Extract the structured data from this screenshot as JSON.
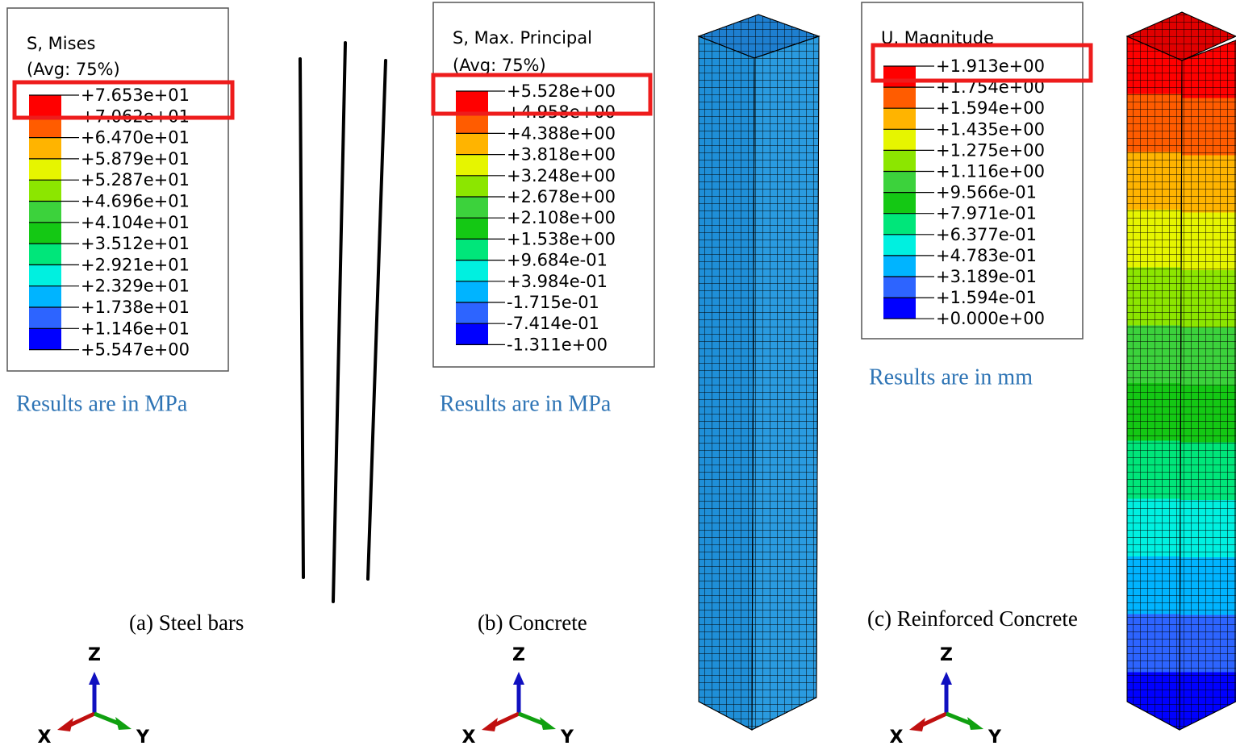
{
  "panels": [
    {
      "legend": {
        "title": "S, Mises",
        "average": "(Avg: 75%)",
        "labels": [
          "+7.653e+01",
          "+7.062e+01",
          "+6.470e+01",
          "+5.879e+01",
          "+5.287e+01",
          "+4.696e+01",
          "+4.104e+01",
          "+3.512e+01",
          "+2.921e+01",
          "+2.329e+01",
          "+1.738e+01",
          "+1.146e+01",
          "+5.547e+00"
        ]
      },
      "units_note": "Results are in MPa",
      "caption": "(a)  Steel bars",
      "triad": {
        "z": "Z",
        "x": "X",
        "y": "Y"
      }
    },
    {
      "legend": {
        "title": "S, Max. Principal",
        "average": "(Avg: 75%)",
        "labels": [
          "+5.528e+00",
          "+4.958e+00",
          "+4.388e+00",
          "+3.818e+00",
          "+3.248e+00",
          "+2.678e+00",
          "+2.108e+00",
          "+1.538e+00",
          "+9.684e-01",
          "+3.984e-01",
          "-1.715e-01",
          "-7.414e-01",
          "-1.311e+00"
        ]
      },
      "units_note": "Results are in MPa",
      "caption": "(b) Concrete",
      "triad": {
        "z": "Z",
        "x": "X",
        "y": "Y"
      }
    },
    {
      "legend": {
        "title": "U, Magnitude",
        "labels": [
          "+1.913e+00",
          "+1.754e+00",
          "+1.594e+00",
          "+1.435e+00",
          "+1.275e+00",
          "+1.116e+00",
          "+9.566e-01",
          "+7.971e-01",
          "+6.377e-01",
          "+4.783e-01",
          "+3.189e-01",
          "+1.594e-01",
          "+0.000e+00"
        ]
      },
      "units_note": "Results are in mm",
      "caption": "(c) Reinforced Concrete",
      "triad": {
        "z": "Z",
        "x": "X",
        "y": "Y"
      }
    }
  ]
}
